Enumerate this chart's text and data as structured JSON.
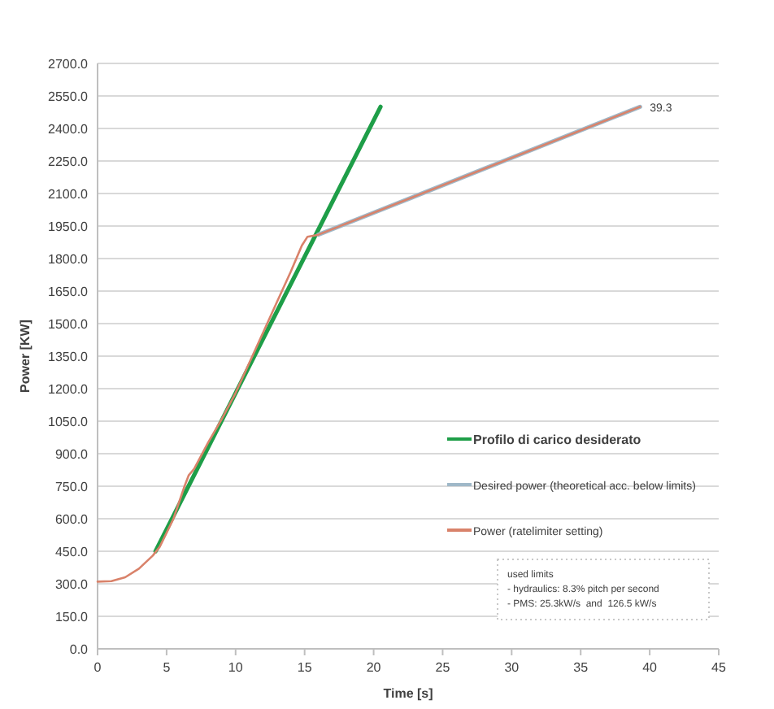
{
  "chart_data": {
    "type": "line",
    "xlabel": "Time [s]",
    "ylabel": "Power [KW]",
    "xlim": [
      0,
      45
    ],
    "xticks": [
      0,
      5,
      10,
      15,
      20,
      25,
      30,
      35,
      40,
      45
    ],
    "ylim": [
      0,
      2700
    ],
    "yticks": [
      {
        "value": 0,
        "label": "0.0"
      },
      {
        "value": 150,
        "label": "150.0"
      },
      {
        "value": 300,
        "label": "300.0"
      },
      {
        "value": 450,
        "label": "450.0"
      },
      {
        "value": 600,
        "label": "600.0"
      },
      {
        "value": 750,
        "label": "750.0"
      },
      {
        "value": 900,
        "label": "900.0"
      },
      {
        "value": 1050,
        "label": "1050.0"
      },
      {
        "value": 1200,
        "label": "1200.0"
      },
      {
        "value": 1350,
        "label": "1350.0"
      },
      {
        "value": 1500,
        "label": "1500.0"
      },
      {
        "value": 1650,
        "label": "1650.0"
      },
      {
        "value": 1800,
        "label": "1800.0"
      },
      {
        "value": 1950,
        "label": "1950.0"
      },
      {
        "value": 2100,
        "label": "2100.0"
      },
      {
        "value": 2250,
        "label": "2250.0"
      },
      {
        "value": 2400,
        "label": "2400.0"
      },
      {
        "value": 2550,
        "label": "2550.0"
      },
      {
        "value": 2700,
        "label": "2700.0"
      }
    ],
    "grid": "y",
    "legend": "right",
    "marker": "none",
    "line_style": "solid",
    "series": [
      {
        "name": "Profilo di carico desiderato",
        "color": "#1e9e48",
        "x": [
          4.2,
          20.5
        ],
        "values": [
          450,
          2500
        ]
      },
      {
        "name": "Desired power (theoretical acc. below limits)",
        "color": "#9fb8c8",
        "x": [
          16,
          39.3
        ],
        "values": [
          1910,
          2500
        ]
      },
      {
        "name": "Power (ratelimiter setting)",
        "color": "#d9826a",
        "x": [
          0,
          1,
          2,
          3,
          4,
          4.5,
          5.5,
          6.3,
          6.6,
          7,
          8,
          9,
          10,
          11,
          12,
          13,
          14,
          14.8,
          15.2,
          16,
          39.3
        ],
        "values": [
          310,
          312,
          330,
          370,
          430,
          470,
          600,
          750,
          800,
          830,
          950,
          1060,
          1180,
          1320,
          1460,
          1600,
          1740,
          1860,
          1900,
          1910,
          2500
        ]
      }
    ],
    "annotations": [
      {
        "text": "39.3",
        "x": 39.3,
        "y": 2500
      },
      "used limits\n- hydraulics: 8.3% pitch per second\n- PMS: 25.3kW/s  and  126.5 kW/s"
    ]
  }
}
